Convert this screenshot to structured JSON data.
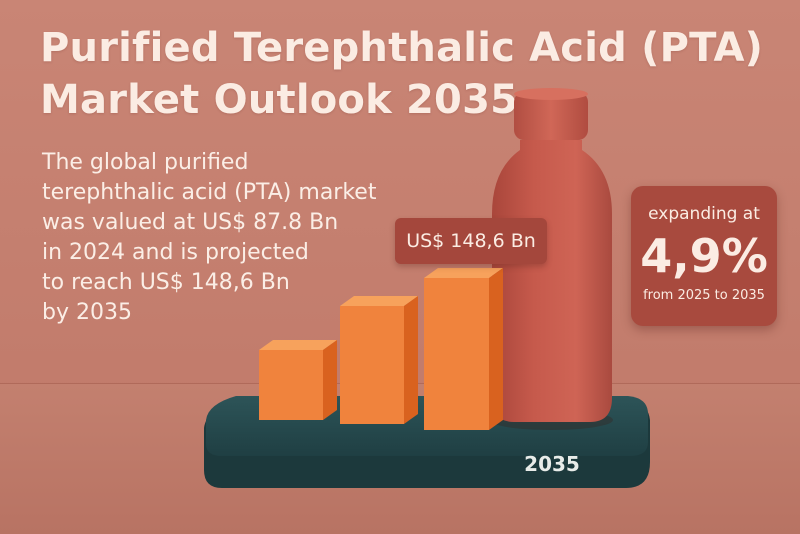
{
  "title": {
    "line1": "Purified Terephthalic Acid (PTA)",
    "line2": "Market Outlook 2035"
  },
  "description": [
    "The global purified",
    "terephthalic acid (PTA) market",
    "was valued at US$ 87.8 Bn",
    "in 2024 and is projected",
    "to reach US$ 148,6 Bn",
    "by 2035"
  ],
  "value_badge": "US$ 148,6 Bn",
  "cagr": {
    "top": "expanding at",
    "value": "4,9%",
    "bottom": "from 2025 to 2035"
  },
  "year_label": "2035",
  "colors": {
    "background": "#c98575",
    "bar_orange": "#f07a33",
    "bottle": "#c4574a",
    "base": "#23464a",
    "badge": "#a84a3e",
    "text_light": "#fbece3"
  }
}
